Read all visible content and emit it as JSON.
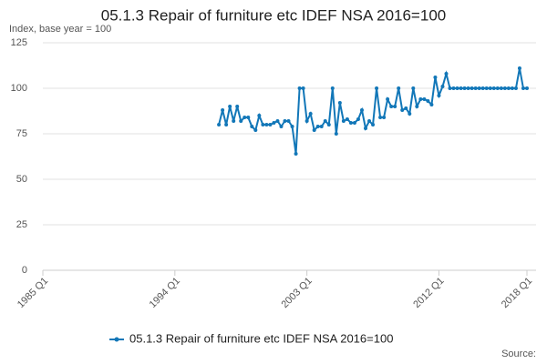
{
  "chart_data": {
    "type": "line",
    "title": "05.1.3 Repair of furniture etc IDEF NSA 2016=100",
    "y_label": "Index, base year = 100",
    "source": "Source:",
    "categories": [
      "1985 Q1",
      null,
      null,
      null,
      null,
      null,
      null,
      null,
      null,
      null,
      null,
      null,
      null,
      null,
      null,
      null,
      null,
      null,
      null,
      null,
      null,
      null,
      null,
      null,
      null,
      null,
      null,
      null,
      null,
      null,
      null,
      null,
      null,
      null,
      null,
      null,
      "1994 Q1",
      null,
      null,
      null,
      null,
      null,
      null,
      null,
      null,
      null,
      null,
      null,
      null,
      null,
      null,
      null,
      null,
      null,
      null,
      null,
      null,
      null,
      null,
      null,
      null,
      null,
      null,
      null,
      null,
      null,
      null,
      null,
      null,
      null,
      null,
      null,
      "2003 Q1",
      null,
      null,
      null,
      null,
      null,
      null,
      null,
      null,
      null,
      null,
      null,
      null,
      null,
      null,
      null,
      null,
      null,
      null,
      null,
      null,
      null,
      null,
      null,
      null,
      null,
      null,
      null,
      null,
      null,
      null,
      null,
      null,
      null,
      null,
      null,
      "2012 Q1",
      null,
      null,
      null,
      null,
      null,
      null,
      null,
      null,
      null,
      null,
      null,
      null,
      null,
      null,
      null,
      null,
      null,
      null,
      null,
      null,
      null,
      null,
      null,
      "2018 Q1"
    ],
    "series": [
      {
        "name": "05.1.3 Repair of furniture etc IDEF NSA 2016=100",
        "color": "#1277b8",
        "values": [
          null,
          null,
          null,
          null,
          null,
          null,
          null,
          null,
          null,
          null,
          null,
          null,
          null,
          null,
          null,
          null,
          null,
          null,
          null,
          null,
          null,
          null,
          null,
          null,
          null,
          null,
          null,
          null,
          null,
          null,
          null,
          null,
          null,
          null,
          null,
          null,
          null,
          null,
          null,
          null,
          null,
          null,
          null,
          null,
          null,
          null,
          null,
          null,
          80,
          88,
          80,
          90,
          82,
          90,
          82,
          84,
          84,
          79,
          77,
          85,
          80,
          80,
          80,
          81,
          82,
          79,
          82,
          82,
          79,
          64,
          100,
          100,
          82,
          86,
          77,
          79,
          79,
          82,
          80,
          100,
          75,
          92,
          82,
          83,
          81,
          81,
          83,
          88,
          78,
          82,
          80,
          100,
          84,
          84,
          94,
          90,
          90,
          100,
          88,
          89,
          86,
          100,
          90,
          94,
          94,
          93,
          91,
          106,
          96,
          101,
          108,
          100,
          100,
          100,
          100,
          100,
          100,
          100,
          100,
          100,
          100,
          100,
          100,
          100,
          100,
          100,
          100,
          100,
          100,
          100,
          111,
          100,
          100
        ]
      }
    ],
    "ylim": [
      0,
      125
    ],
    "yticks": [
      0,
      25,
      50,
      75,
      100,
      125
    ],
    "grid": true,
    "legend": "bottom"
  }
}
